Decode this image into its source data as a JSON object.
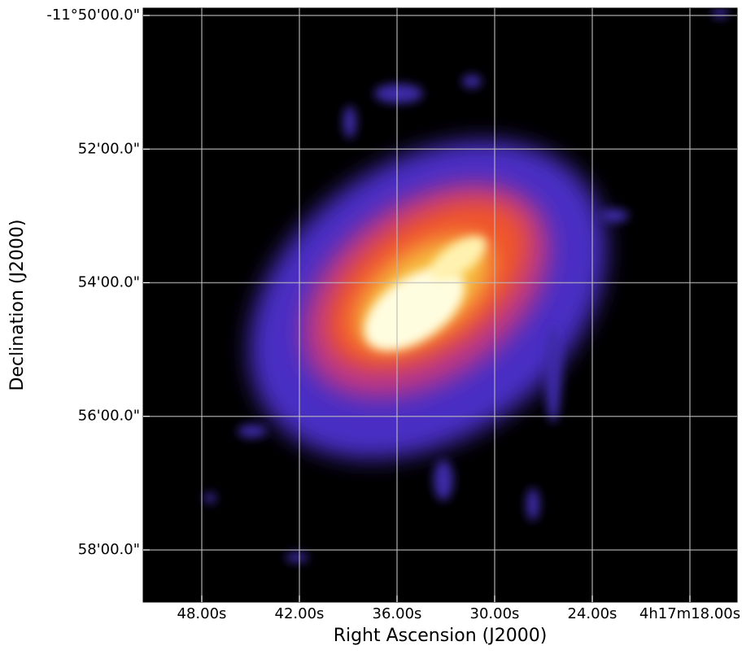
{
  "chart_data": {
    "type": "image",
    "xlabel": "Right Ascension (J2000)",
    "ylabel": "Declination (J2000)",
    "xlim": [
      51.6,
      15.1
    ],
    "xticks": [
      {
        "value": 48,
        "label": "48.00s"
      },
      {
        "value": 42,
        "label": "42.00s"
      },
      {
        "value": 36,
        "label": "36.00s"
      },
      {
        "value": 30,
        "label": "30.00s"
      },
      {
        "value": 24,
        "label": "24.00s"
      },
      {
        "value": 18,
        "label": "4h17m18.00s"
      }
    ],
    "ylim": [
      58.78,
      49.89
    ],
    "yticks": [
      {
        "value": 50,
        "label": "-11°50'00.0\""
      },
      {
        "value": 52,
        "label": "52'00.0\""
      },
      {
        "value": 54,
        "label": "54'00.0\""
      },
      {
        "value": 56,
        "label": "56'00.0\""
      },
      {
        "value": 58,
        "label": "58'00.0\""
      }
    ],
    "grid": true
  }
}
